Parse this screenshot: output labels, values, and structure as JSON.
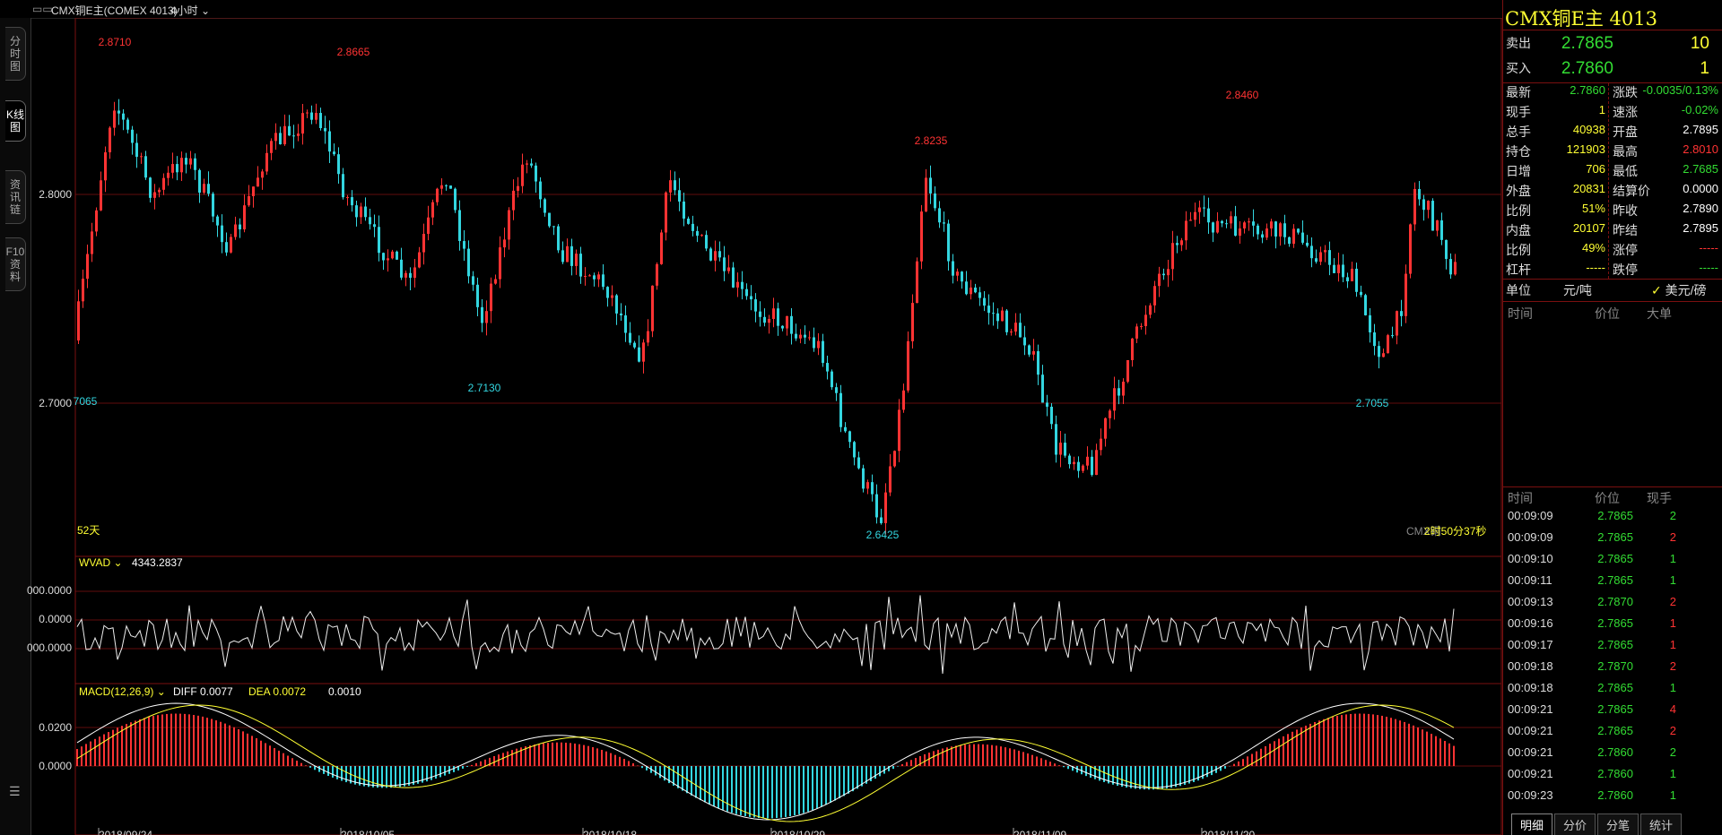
{
  "topbar": {
    "menu_icon": "menu-icon",
    "instrument": "CMX铜E主(COMEX 4013)",
    "period": "4小时"
  },
  "left_tabs": [
    {
      "label": "分时图",
      "active": false
    },
    {
      "label": "K线图",
      "active": true
    },
    {
      "label": "资讯链",
      "active": false
    },
    {
      "label": "F10资料",
      "active": false
    }
  ],
  "left_menu_icon": "list-icon",
  "main": {
    "price_axis": [
      "2.8000",
      "2.7000"
    ],
    "wvad_axis": [
      "000.0000",
      "0.0000",
      "000.0000"
    ],
    "macd_axis": [
      "0.0200",
      "0.0000"
    ],
    "dates": [
      "2018/09/24",
      "2018/10/05",
      "2018/10/18",
      "2018/10/29",
      "2018/11/09",
      "2018/11/20"
    ],
    "highlow_labels": [
      {
        "text": "2.8710",
        "type": "high"
      },
      {
        "text": "2.8665",
        "type": "high"
      },
      {
        "text": "2.8235",
        "type": "high"
      },
      {
        "text": "2.8460",
        "type": "high"
      },
      {
        "text": "7065",
        "type": "low"
      },
      {
        "text": "2.7130",
        "type": "low"
      },
      {
        "text": "2.6425",
        "type": "low"
      },
      {
        "text": "2.7055",
        "type": "low"
      }
    ],
    "period_label": "52天",
    "countdown_label": "CMX铜",
    "countdown_value": "2时50分37秒",
    "wvad": {
      "name": "WVAD",
      "value": "4343.2837"
    },
    "macd": {
      "name": "MACD(12,26,9)",
      "diff": "DIFF 0.0077",
      "dea": "DEA 0.0072",
      "macd": "0.0010"
    }
  },
  "quote": {
    "title": "CMX铜E主 4013",
    "sell": {
      "label": "卖出",
      "price": "2.7865",
      "vol": "10"
    },
    "buy": {
      "label": "买入",
      "price": "2.7860",
      "vol": "1"
    },
    "left": [
      {
        "label": "最新",
        "value": "2.7860",
        "color": "#33dd33"
      },
      {
        "label": "现手",
        "value": "1",
        "color": "#ffff33"
      },
      {
        "label": "总手",
        "value": "40938",
        "color": "#ffff33"
      },
      {
        "label": "持仓",
        "value": "121903",
        "color": "#ffff33"
      },
      {
        "label": "日增",
        "value": "706",
        "color": "#ffff33"
      },
      {
        "label": "外盘",
        "value": "20831",
        "color": "#ffff33"
      },
      {
        "label": "比例",
        "value": "51%",
        "color": "#ffff33"
      },
      {
        "label": "内盘",
        "value": "20107",
        "color": "#ffff33"
      },
      {
        "label": "比例",
        "value": "49%",
        "color": "#ffff33"
      },
      {
        "label": "杠杆",
        "value": "-----",
        "color": "#ffff33"
      }
    ],
    "right": [
      {
        "label": "涨跌",
        "value": "-0.0035/0.13%",
        "color": "#33dd33"
      },
      {
        "label": "速涨",
        "value": "-0.02%",
        "color": "#33dd33"
      },
      {
        "label": "开盘",
        "value": "2.7895",
        "color": "#ffffff"
      },
      {
        "label": "最高",
        "value": "2.8010",
        "color": "#ff3333"
      },
      {
        "label": "最低",
        "value": "2.7685",
        "color": "#33dd33"
      },
      {
        "label": "结算价",
        "value": "0.0000",
        "color": "#ffffff"
      },
      {
        "label": "昨收",
        "value": "2.7890",
        "color": "#ffffff"
      },
      {
        "label": "昨结",
        "value": "2.7895",
        "color": "#ffffff"
      },
      {
        "label": "涨停",
        "value": "-----",
        "color": "#ff3333"
      },
      {
        "label": "跌停",
        "value": "-----",
        "color": "#33dd33"
      }
    ],
    "unit_label": "单位",
    "unit_cny": "元/吨",
    "unit_usd": "美元/磅",
    "big_header": {
      "time": "时间",
      "price": "价位",
      "big": "大单"
    },
    "trade_header": {
      "time": "时间",
      "price": "价位",
      "vol": "现手"
    },
    "trades": [
      {
        "time": "00:09:09",
        "price": "2.7865",
        "vol": "2",
        "vcolor": "#33dd33"
      },
      {
        "time": "00:09:09",
        "price": "2.7865",
        "vol": "2",
        "vcolor": "#ff3333"
      },
      {
        "time": "00:09:10",
        "price": "2.7865",
        "vol": "1",
        "vcolor": "#33dd33"
      },
      {
        "time": "00:09:11",
        "price": "2.7865",
        "vol": "1",
        "vcolor": "#33dd33"
      },
      {
        "time": "00:09:13",
        "price": "2.7870",
        "vol": "2",
        "vcolor": "#ff3333"
      },
      {
        "time": "00:09:16",
        "price": "2.7865",
        "vol": "1",
        "vcolor": "#ff3333"
      },
      {
        "time": "00:09:17",
        "price": "2.7865",
        "vol": "1",
        "vcolor": "#ff3333"
      },
      {
        "time": "00:09:18",
        "price": "2.7870",
        "vol": "2",
        "vcolor": "#ff3333"
      },
      {
        "time": "00:09:18",
        "price": "2.7865",
        "vol": "1",
        "vcolor": "#33dd33"
      },
      {
        "time": "00:09:21",
        "price": "2.7865",
        "vol": "4",
        "vcolor": "#ff3333"
      },
      {
        "time": "00:09:21",
        "price": "2.7865",
        "vol": "2",
        "vcolor": "#ff3333"
      },
      {
        "time": "00:09:21",
        "price": "2.7860",
        "vol": "2",
        "vcolor": "#33dd33"
      },
      {
        "time": "00:09:21",
        "price": "2.7860",
        "vol": "1",
        "vcolor": "#33dd33"
      },
      {
        "time": "00:09:23",
        "price": "2.7860",
        "vol": "1",
        "vcolor": "#33dd33"
      }
    ]
  },
  "bottom_tabs": [
    "明细",
    "分价",
    "分笔",
    "统计"
  ],
  "colors": {
    "up": "#ff3333",
    "down": "#33d6e0",
    "grid": "#7a1010",
    "label": "#ffff33"
  }
}
